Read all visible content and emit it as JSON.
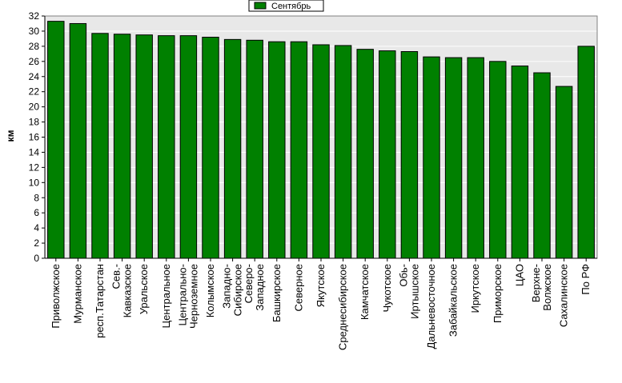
{
  "chart_data": {
    "type": "bar",
    "ylabel": "км",
    "ylim": [
      0,
      32
    ],
    "ytick_step": 2,
    "grid": true,
    "legend_position": "top-center",
    "categories": [
      "Приволжское",
      "Мурманское",
      "респ.Татарстан",
      [
        "Сев.-",
        "Кавказское"
      ],
      "Уральское",
      "Центральное",
      [
        "Центрально-",
        "Черноземное"
      ],
      "Колымское",
      [
        "Западно-",
        "Сибирское"
      ],
      [
        "Северо-",
        "Западное"
      ],
      "Башкирское",
      "Северное",
      "Якутское",
      "Среднесибирское",
      "Камчатское",
      "Чукотское",
      [
        "Обь-",
        "Иртышское"
      ],
      "Дальневосточное",
      "Забайкальское",
      "Иркутское",
      "Приморское",
      "ЦАО",
      [
        "Верхне-",
        "Волжское"
      ],
      "Сахалинское",
      "По РФ"
    ],
    "series": [
      {
        "name": "Сентябрь",
        "color": "#008000",
        "values": [
          31.3,
          31.0,
          29.7,
          29.6,
          29.5,
          29.4,
          29.4,
          29.2,
          28.9,
          28.8,
          28.6,
          28.6,
          28.2,
          28.1,
          27.6,
          27.4,
          27.3,
          26.6,
          26.5,
          26.5,
          26.0,
          25.4,
          24.5,
          22.7,
          28.0
        ]
      }
    ]
  },
  "colors": {
    "plot_background": "#e8e8e8",
    "grid": "#ffffff",
    "bar_stroke": "#000000"
  }
}
